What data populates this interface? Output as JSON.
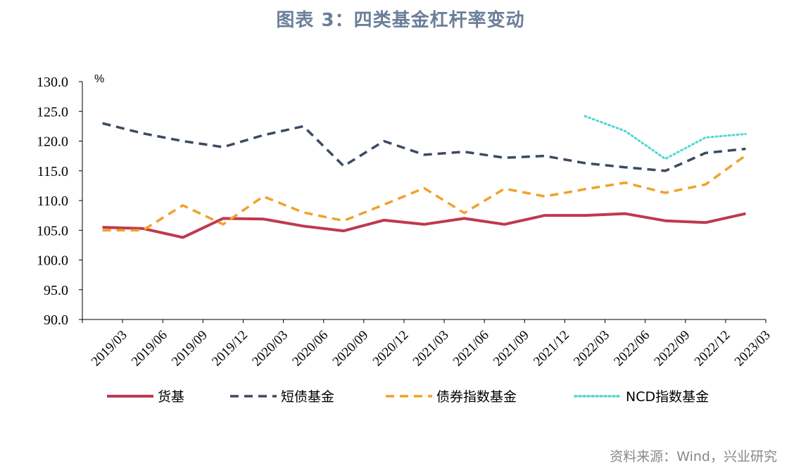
{
  "title": "图表 3：四类基金杠杆率变动",
  "source": "资料来源：Wind，兴业研究",
  "chart_data": {
    "type": "line",
    "ylabel": "%",
    "ylim": [
      90,
      130
    ],
    "yticks": [
      "90.0",
      "95.0",
      "100.0",
      "105.0",
      "110.0",
      "115.0",
      "120.0",
      "125.0",
      "130.0"
    ],
    "categories": [
      "2019/03",
      "2019/06",
      "2019/09",
      "2019/12",
      "2020/03",
      "2020/06",
      "2020/09",
      "2020/12",
      "2021/03",
      "2021/06",
      "2021/09",
      "2021/12",
      "2022/03",
      "2022/06",
      "2022/09",
      "2022/12",
      "2023/03"
    ],
    "legend_position": "bottom",
    "grid": false,
    "series": [
      {
        "name": "货基",
        "color": "#c0394f",
        "style": "solid",
        "values": [
          105.5,
          105.3,
          103.8,
          107.0,
          106.9,
          105.7,
          104.9,
          106.7,
          106.0,
          107.0,
          106.0,
          107.5,
          107.5,
          107.8,
          106.6,
          106.3,
          107.8
        ]
      },
      {
        "name": "短债基金",
        "color": "#3c4a63",
        "style": "dashed",
        "values": [
          123.0,
          121.3,
          120.0,
          119.0,
          121.0,
          122.5,
          115.8,
          120.0,
          117.7,
          118.2,
          117.2,
          117.5,
          116.3,
          115.6,
          115.0,
          118.0,
          118.7
        ]
      },
      {
        "name": "债券指数基金",
        "color": "#f0a22c",
        "style": "dashed",
        "values": [
          105.0,
          105.0,
          109.2,
          106.0,
          110.7,
          108.0,
          106.6,
          109.3,
          112.1,
          107.9,
          112.0,
          110.7,
          111.9,
          113.0,
          111.3,
          112.7,
          117.6
        ]
      },
      {
        "name": "NCD指数基金",
        "color": "#4ed8d2",
        "style": "dotted",
        "values": [
          null,
          null,
          null,
          null,
          null,
          null,
          null,
          null,
          null,
          null,
          null,
          null,
          124.2,
          121.7,
          117.0,
          120.6,
          121.2
        ]
      }
    ]
  }
}
